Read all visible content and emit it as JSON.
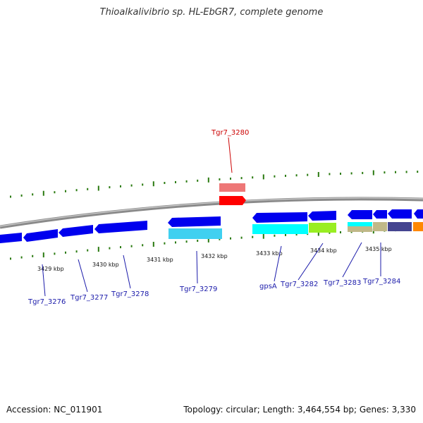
{
  "title": "Thioalkalivibrio sp. HL-EbGR7, complete genome",
  "footer": {
    "accession": "Accession: NC_011901",
    "summary": "Topology: circular; Length: 3,464,554 bp; Genes: 3,330"
  },
  "colors": {
    "gene_forward": "#0000ee",
    "gene_reverse": "#0000ee",
    "highlight": "#ff0000",
    "highlight_light": "#ee7777",
    "label_default": "#1a1aaa",
    "label_highlight": "#cc0000",
    "backbone": "#8a8a8a",
    "tick": "#2a7a10"
  },
  "kbp_labels": [
    "3429 kbp",
    "3430 kbp",
    "3431 kbp",
    "3432 kbp",
    "3433 kbp",
    "3434 kbp",
    "3435 kbp"
  ],
  "gene_labels": [
    {
      "name": "Tgr7_3276",
      "highlight": false
    },
    {
      "name": "Tgr7_3277",
      "highlight": false
    },
    {
      "name": "Tgr7_3278",
      "highlight": false
    },
    {
      "name": "Tgr7_3279",
      "highlight": false
    },
    {
      "name": "gpsA",
      "highlight": false
    },
    {
      "name": "Tgr7_3282",
      "highlight": false
    },
    {
      "name": "Tgr7_3283",
      "highlight": false
    },
    {
      "name": "Tgr7_3284",
      "highlight": false
    },
    {
      "name": "Tgr7_3280",
      "highlight": true
    }
  ],
  "cog_colors": [
    "#40d0f0",
    "#00ffff",
    "#99ee22",
    "#c0b888",
    "#454590",
    "#ff8800",
    "#ee7777"
  ]
}
